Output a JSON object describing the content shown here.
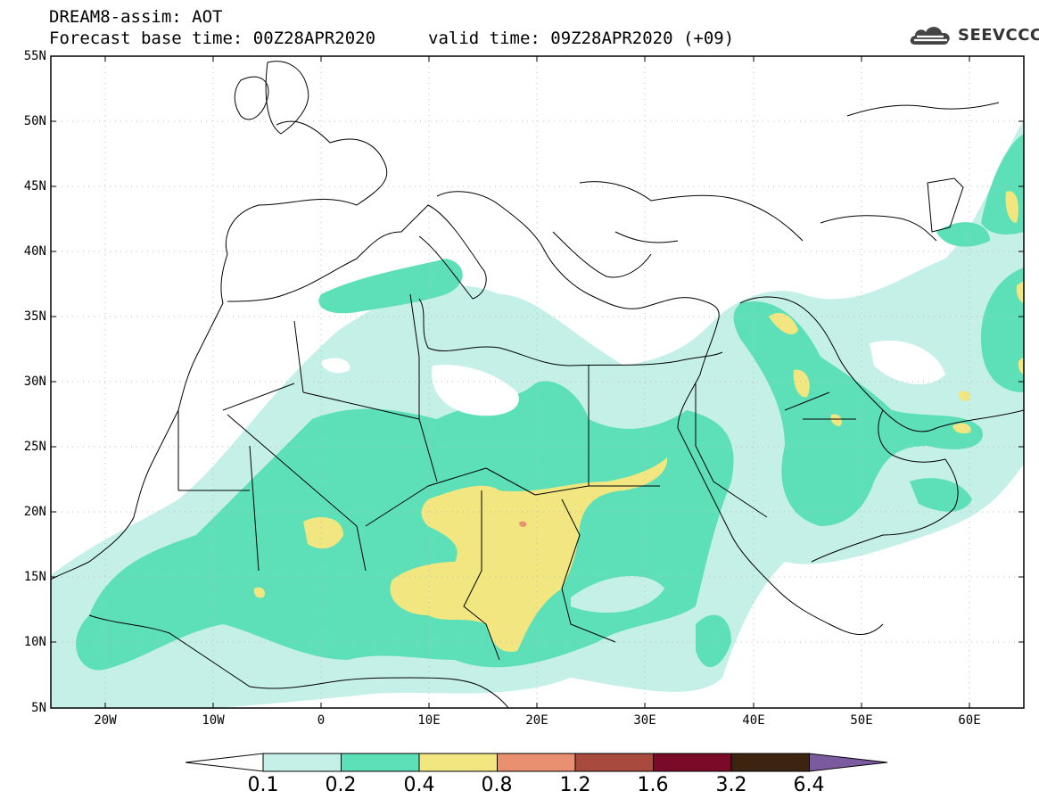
{
  "title": {
    "line1": "DREAM8-assim: AOT",
    "line2": "Forecast base time: 00Z28APR2020",
    "valid": "valid time: 09Z28APR2020 (+09)"
  },
  "logo": {
    "icon": "cloud-icon",
    "text": "SEEVCCC"
  },
  "axes": {
    "lat_labels": [
      "55N",
      "50N",
      "45N",
      "40N",
      "35N",
      "30N",
      "25N",
      "20N",
      "15N",
      "10N",
      "5N"
    ],
    "lon_labels": [
      "20W",
      "10W",
      "0",
      "10E",
      "20E",
      "30E",
      "40E",
      "50E",
      "60E"
    ],
    "lat_range": [
      5,
      55
    ],
    "lon_range": [
      -25,
      65
    ],
    "grid": "dotted"
  },
  "colorbar": {
    "labels": [
      "0.1",
      "0.2",
      "0.4",
      "0.8",
      "1.2",
      "1.6",
      "3.2",
      "6.4"
    ],
    "colors": [
      "#ffffff",
      "#c4f0e8",
      "#5de0b8",
      "#f2e680",
      "#e89070",
      "#a84a3c",
      "#7a0a28",
      "#3c2410",
      "#7b5aa0"
    ]
  }
}
